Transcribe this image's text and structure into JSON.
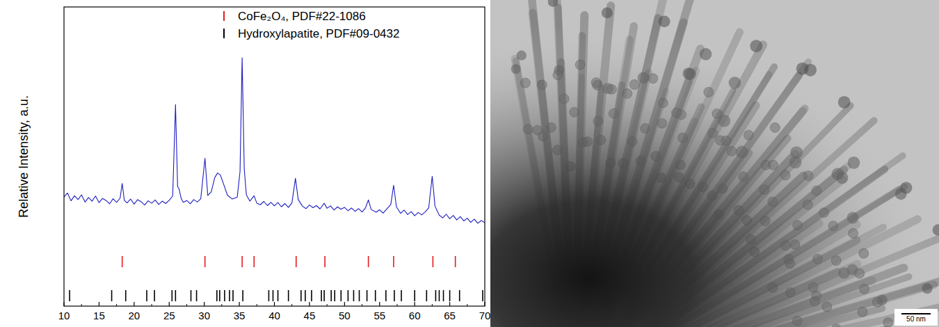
{
  "chart_data": {
    "type": "line",
    "y_label": "Relative Intensity, a.u.",
    "color": "#1c1cc0",
    "tick_labels": "x",
    "legend": "top",
    "xlim": [
      10,
      70
    ],
    "xticks": [
      10,
      15,
      20,
      25,
      30,
      35,
      40,
      45,
      50,
      55,
      60,
      65,
      70
    ],
    "ylim": [
      0,
      100
    ],
    "yticks": [],
    "x": [
      10,
      10.5,
      11,
      11.5,
      12,
      12.5,
      13,
      13.5,
      14,
      14.5,
      15,
      15.5,
      16,
      16.5,
      17,
      17.5,
      18,
      18.3,
      18.6,
      19,
      19.5,
      20,
      20.5,
      21,
      21.5,
      22,
      22.5,
      23,
      23.5,
      24,
      24.5,
      25,
      25.5,
      25.9,
      26.2,
      26.4,
      26.7,
      27,
      27.5,
      28,
      28.5,
      29,
      29.5,
      30.1,
      30.5,
      31,
      31.5,
      31.9,
      32.3,
      32.8,
      33.3,
      34,
      34.7,
      35.1,
      35.4,
      35.7,
      36,
      36.5,
      37.1,
      37.5,
      38,
      38.5,
      39,
      39.5,
      40,
      40.5,
      41,
      41.5,
      42,
      42.5,
      43.0,
      43.4,
      44,
      44.5,
      45,
      45.5,
      46,
      46.5,
      47.1,
      47.5,
      48,
      48.5,
      49,
      49.5,
      50,
      50.5,
      51,
      51.5,
      52,
      52.5,
      53,
      53.4,
      53.8,
      54.5,
      55,
      55.5,
      56,
      56.6,
      57.0,
      57.4,
      58,
      58.5,
      59,
      59.5,
      60,
      60.5,
      61,
      61.5,
      62,
      62.5,
      62.9,
      63.5,
      64,
      64.5,
      65,
      65.5,
      66,
      66.5,
      67,
      67.5,
      68,
      68.5,
      69,
      69.5,
      70
    ],
    "values": [
      36.5,
      37.8,
      35.2,
      36.9,
      35.6,
      37.2,
      34.8,
      36.3,
      35.1,
      36.8,
      34.6,
      36.0,
      35.3,
      34.2,
      35.9,
      34.7,
      36.1,
      41.0,
      35.4,
      34.5,
      35.8,
      34.1,
      35.6,
      34.9,
      33.8,
      35.2,
      34.4,
      35.5,
      34.0,
      35.1,
      34.3,
      35.4,
      36.8,
      67.4,
      40.0,
      39.2,
      36.1,
      34.7,
      35.3,
      34.2,
      35.6,
      34.8,
      35.9,
      49.4,
      37.0,
      38.2,
      43.0,
      44.5,
      43.8,
      40.5,
      37.1,
      35.8,
      36.4,
      45.0,
      83.0,
      46.0,
      37.2,
      35.1,
      36.9,
      34.4,
      33.9,
      35.0,
      33.6,
      34.7,
      33.5,
      34.6,
      33.2,
      34.3,
      33.0,
      34.5,
      42.7,
      35.6,
      33.4,
      32.6,
      33.8,
      32.9,
      33.6,
      32.5,
      34.4,
      32.7,
      33.5,
      32.1,
      33.2,
      32.4,
      33.0,
      31.9,
      32.8,
      31.7,
      32.6,
      31.5,
      32.9,
      35.5,
      32.3,
      31.4,
      32.2,
      31.1,
      32.4,
      34.0,
      40.4,
      33.2,
      31.0,
      32.1,
      30.6,
      31.6,
      30.2,
      31.3,
      30.5,
      31.5,
      32.8,
      43.4,
      33.4,
      30.4,
      29.5,
      30.7,
      29.2,
      30.3,
      28.8,
      29.9,
      28.5,
      29.4,
      28.0,
      29.1,
      27.7,
      28.6,
      27.9
    ],
    "series": [
      {
        "name": "CoFe₂O₄, PDF#22-1086",
        "color": "#e41a1c",
        "type": "sticks",
        "x": [
          18.3,
          30.1,
          35.4,
          37.1,
          43.1,
          47.2,
          53.4,
          57.0,
          62.6,
          65.8
        ]
      },
      {
        "name": "Hydroxylapatite, PDF#09-0432",
        "color": "#000000",
        "type": "sticks",
        "x": [
          10.8,
          16.8,
          18.8,
          21.8,
          22.9,
          25.4,
          25.9,
          28.1,
          28.9,
          31.8,
          32.2,
          32.9,
          33.6,
          34.1,
          35.5,
          39.2,
          39.8,
          40.5,
          42.0,
          43.8,
          44.4,
          45.3,
          46.7,
          47.1,
          48.1,
          48.6,
          49.5,
          50.5,
          51.3,
          52.1,
          53.2,
          54.4,
          55.9,
          57.1,
          58.1,
          60.0,
          61.7,
          63.0,
          63.5,
          64.1,
          65.0,
          66.4,
          69.7
        ]
      }
    ]
  },
  "image": {
    "type": "tem-micrograph",
    "scale_bar": "50 nm"
  }
}
